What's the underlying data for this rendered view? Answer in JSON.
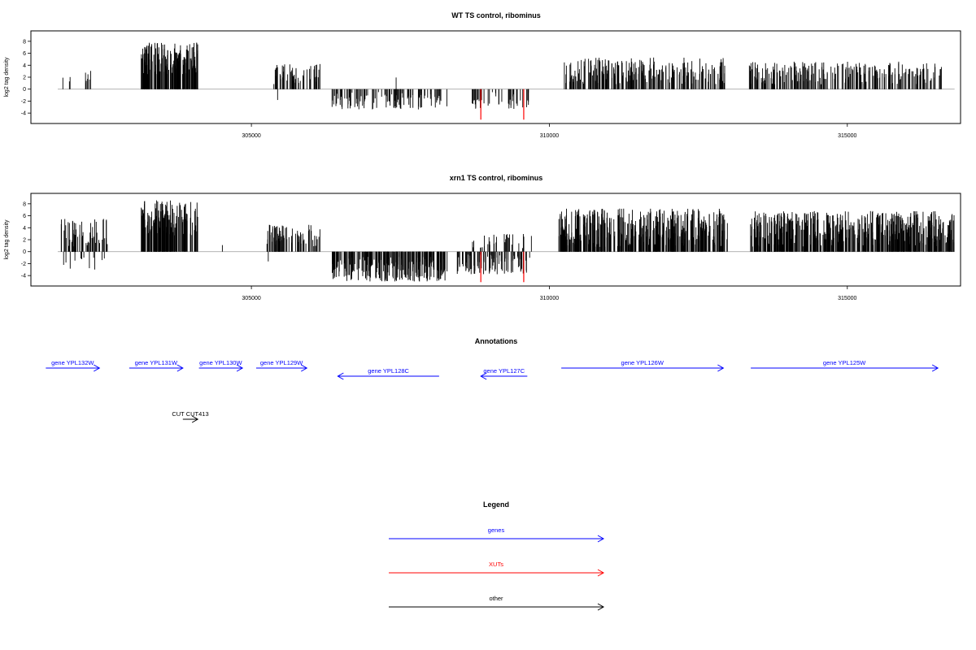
{
  "colors": {
    "genes": "#0000FF",
    "xuts": "#FF0000",
    "other": "#000000",
    "baseline": "#999999"
  },
  "chart_data": [
    {
      "type": "bar",
      "title": "WT TS control, ribominus",
      "ylabel": "log2 tag density",
      "xlim": [
        301300,
        316900
      ],
      "ylim": [
        -5.2,
        9.2
      ],
      "x_ticks": [
        305000,
        310000,
        315000
      ],
      "x_tick_labels": [
        "305000",
        "310000",
        "315000"
      ],
      "y_ticks": [
        -4,
        -2,
        0,
        2,
        4,
        6,
        8
      ],
      "y_tick_labels": [
        "-4",
        "-2",
        "0",
        "2",
        "4",
        "6",
        "8"
      ],
      "segments": [
        {
          "start": 301800,
          "end": 302400,
          "strand": "+",
          "density": 0.1,
          "min": 0.8,
          "max": 3.2,
          "color": "#000000"
        },
        {
          "start": 303150,
          "end": 304100,
          "strand": "+",
          "density": 1.0,
          "min": 2.5,
          "max": 7.8,
          "color": "#000000"
        },
        {
          "start": 305350,
          "end": 306150,
          "strand": "+",
          "density": 0.4,
          "min": 0.8,
          "max": 4.2,
          "color": "#000000"
        },
        {
          "start": 305430,
          "end": 305470,
          "strand": "-",
          "density": 0.05,
          "min": 1.5,
          "max": 2.0,
          "color": "#000000"
        },
        {
          "start": 306350,
          "end": 308300,
          "strand": "-",
          "density": 0.35,
          "min": 0.5,
          "max": 3.4,
          "color": "#000000"
        },
        {
          "start": 307420,
          "end": 307460,
          "strand": "+",
          "density": 0.05,
          "min": 1.8,
          "max": 2.0,
          "color": "#000000"
        },
        {
          "start": 308700,
          "end": 309650,
          "strand": "-",
          "density": 0.3,
          "min": 0.5,
          "max": 3.3,
          "color": "#000000"
        },
        {
          "start": 310250,
          "end": 312950,
          "strand": "+",
          "density": 0.55,
          "min": 0.8,
          "max": 5.3,
          "color": "#000000"
        },
        {
          "start": 313350,
          "end": 316600,
          "strand": "+",
          "density": 0.45,
          "min": 0.8,
          "max": 4.6,
          "color": "#000000"
        }
      ],
      "highlights": [
        {
          "x": 308850,
          "y": -5.1,
          "color": "#FF0000"
        },
        {
          "x": 309570,
          "y": -5.1,
          "color": "#FF0000"
        }
      ]
    },
    {
      "type": "bar",
      "title": "xrn1 TS control, ribominus",
      "ylabel": "log2 tag density",
      "xlim": [
        301300,
        316900
      ],
      "ylim": [
        -5.2,
        9.2
      ],
      "x_ticks": [
        305000,
        310000,
        315000
      ],
      "x_tick_labels": [
        "305000",
        "310000",
        "315000"
      ],
      "y_ticks": [
        -4,
        -2,
        0,
        2,
        4,
        6,
        8
      ],
      "y_tick_labels": [
        "-4",
        "-2",
        "0",
        "2",
        "4",
        "6",
        "8"
      ],
      "segments": [
        {
          "start": 301800,
          "end": 302650,
          "strand": "+",
          "density": 0.45,
          "min": 0.8,
          "max": 5.5,
          "color": "#000000"
        },
        {
          "start": 301800,
          "end": 302550,
          "strand": "-",
          "density": 0.1,
          "min": 0.5,
          "max": 3.0,
          "color": "#000000"
        },
        {
          "start": 303150,
          "end": 304100,
          "strand": "+",
          "density": 1.0,
          "min": 2.5,
          "max": 8.6,
          "color": "#000000"
        },
        {
          "start": 304500,
          "end": 304540,
          "strand": "+",
          "density": 0.05,
          "min": 1.0,
          "max": 1.3,
          "color": "#000000"
        },
        {
          "start": 305250,
          "end": 306150,
          "strand": "+",
          "density": 0.55,
          "min": 0.8,
          "max": 4.5,
          "color": "#000000"
        },
        {
          "start": 305280,
          "end": 305340,
          "strand": "-",
          "density": 0.05,
          "min": 1.5,
          "max": 2.2,
          "color": "#000000"
        },
        {
          "start": 306350,
          "end": 308300,
          "strand": "-",
          "density": 0.75,
          "min": 0.8,
          "max": 5.0,
          "color": "#000000"
        },
        {
          "start": 308450,
          "end": 309700,
          "strand": "-",
          "density": 0.5,
          "min": 0.5,
          "max": 3.8,
          "color": "#000000"
        },
        {
          "start": 308700,
          "end": 309700,
          "strand": "+",
          "density": 0.2,
          "min": 0.5,
          "max": 3.0,
          "color": "#000000"
        },
        {
          "start": 310150,
          "end": 313000,
          "strand": "+",
          "density": 0.9,
          "min": 0.8,
          "max": 7.2,
          "color": "#000000"
        },
        {
          "start": 313350,
          "end": 316800,
          "strand": "+",
          "density": 0.9,
          "min": 0.8,
          "max": 6.8,
          "color": "#000000"
        }
      ],
      "highlights": [
        {
          "x": 308850,
          "y": -5.1,
          "color": "#FF0000"
        },
        {
          "x": 309570,
          "y": -5.1,
          "color": "#FF0000"
        }
      ]
    }
  ],
  "annotations": {
    "title": "Annotations",
    "features": [
      {
        "label": "gene YPL132W",
        "start": 301550,
        "end": 302450,
        "strand": "+",
        "color": "#0000FF",
        "row": 0
      },
      {
        "label": "gene YPL131W",
        "start": 302950,
        "end": 303850,
        "strand": "+",
        "color": "#0000FF",
        "row": 0
      },
      {
        "label": "gene YPL130W",
        "start": 304120,
        "end": 304850,
        "strand": "+",
        "color": "#0000FF",
        "row": 0
      },
      {
        "label": "gene YPL129W",
        "start": 305080,
        "end": 305930,
        "strand": "+",
        "color": "#0000FF",
        "row": 0
      },
      {
        "label": "gene YPL128C",
        "start": 306450,
        "end": 308150,
        "strand": "-",
        "color": "#0000FF",
        "row": 1
      },
      {
        "label": "gene YPL127C",
        "start": 308850,
        "end": 309630,
        "strand": "-",
        "color": "#0000FF",
        "row": 1
      },
      {
        "label": "gene YPL126W",
        "start": 310200,
        "end": 312920,
        "strand": "+",
        "color": "#0000FF",
        "row": 0
      },
      {
        "label": "gene YPL125W",
        "start": 313380,
        "end": 316520,
        "strand": "+",
        "color": "#0000FF",
        "row": 0
      },
      {
        "label": "CUT CUT413",
        "start": 303850,
        "end": 304100,
        "strand": "+",
        "color": "#000000",
        "row": 2
      }
    ]
  },
  "legend": {
    "title": "Legend",
    "items": [
      {
        "label": "genes",
        "color": "#0000FF"
      },
      {
        "label": "XUTs",
        "color": "#FF0000"
      },
      {
        "label": "other",
        "color": "#000000"
      }
    ]
  }
}
